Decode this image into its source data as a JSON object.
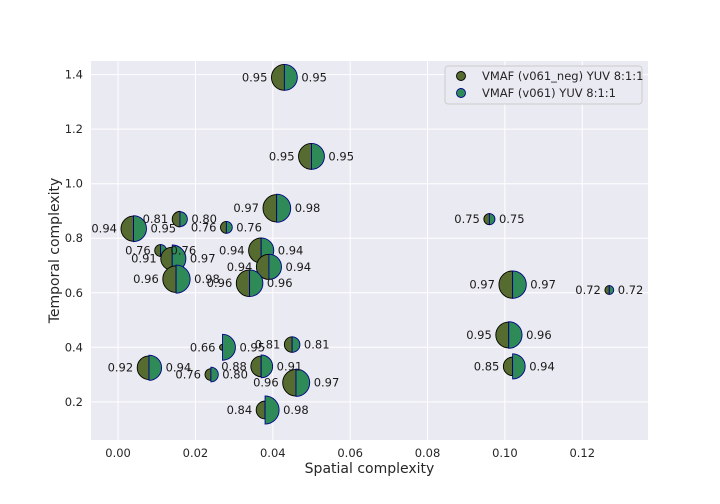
{
  "chart_data": {
    "type": "scatter",
    "title": "",
    "xlabel": "Spatial complexity",
    "ylabel": "Temporal complexity",
    "xlim": [
      -0.007,
      0.137
    ],
    "ylim": [
      0.06,
      1.45
    ],
    "xticks": [
      "0.00",
      "0.02",
      "0.04",
      "0.06",
      "0.08",
      "0.10",
      "0.12"
    ],
    "yticks": [
      "0.2",
      "0.4",
      "0.6",
      "0.8",
      "1.0",
      "1.2",
      "1.4"
    ],
    "grid": true,
    "legend_position": "top-right",
    "style": "split half-circle markers: left half = first series, right half = second series; marker size grows with score",
    "series": [
      {
        "name": "VMAF (v061_neg) YUV 8:1:1",
        "color": "#556b2f"
      },
      {
        "name": "VMAF (v061) YUV 8:1:1",
        "color": "#2e8b57"
      }
    ],
    "points": [
      {
        "x": 0.043,
        "y": 1.39,
        "left": 0.95,
        "right": 0.95
      },
      {
        "x": 0.05,
        "y": 1.1,
        "left": 0.95,
        "right": 0.95
      },
      {
        "x": 0.041,
        "y": 0.91,
        "left": 0.97,
        "right": 0.98
      },
      {
        "x": 0.016,
        "y": 0.87,
        "left": 0.81,
        "right": 0.8
      },
      {
        "x": 0.028,
        "y": 0.84,
        "left": 0.76,
        "right": 0.76
      },
      {
        "x": 0.004,
        "y": 0.835,
        "left": 0.94,
        "right": 0.95
      },
      {
        "x": 0.096,
        "y": 0.87,
        "left": 0.75,
        "right": 0.75
      },
      {
        "x": 0.037,
        "y": 0.755,
        "left": 0.94,
        "right": 0.94
      },
      {
        "x": 0.011,
        "y": 0.755,
        "left": 0.76,
        "right": 0.76
      },
      {
        "x": 0.014,
        "y": 0.725,
        "left": 0.91,
        "right": 0.97
      },
      {
        "x": 0.039,
        "y": 0.695,
        "left": 0.94,
        "right": 0.94
      },
      {
        "x": 0.015,
        "y": 0.65,
        "left": 0.96,
        "right": 0.98
      },
      {
        "x": 0.034,
        "y": 0.635,
        "left": 0.96,
        "right": 0.96
      },
      {
        "x": 0.102,
        "y": 0.63,
        "left": 0.97,
        "right": 0.97
      },
      {
        "x": 0.127,
        "y": 0.61,
        "left": 0.72,
        "right": 0.72
      },
      {
        "x": 0.101,
        "y": 0.445,
        "left": 0.95,
        "right": 0.96
      },
      {
        "x": 0.045,
        "y": 0.41,
        "left": 0.81,
        "right": 0.81
      },
      {
        "x": 0.027,
        "y": 0.4,
        "left": 0.66,
        "right": 0.95
      },
      {
        "x": 0.008,
        "y": 0.325,
        "left": 0.92,
        "right": 0.94
      },
      {
        "x": 0.037,
        "y": 0.33,
        "left": 0.88,
        "right": 0.91
      },
      {
        "x": 0.102,
        "y": 0.33,
        "left": 0.85,
        "right": 0.94
      },
      {
        "x": 0.024,
        "y": 0.3,
        "left": 0.76,
        "right": 0.8
      },
      {
        "x": 0.046,
        "y": 0.27,
        "left": 0.96,
        "right": 0.97
      },
      {
        "x": 0.038,
        "y": 0.17,
        "left": 0.84,
        "right": 0.98
      }
    ]
  }
}
